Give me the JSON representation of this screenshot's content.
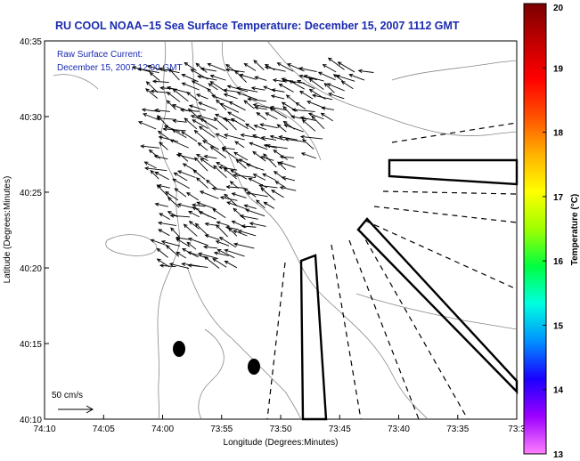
{
  "chart_data": {
    "type": "vector_field",
    "title": "RU COOL  NOAA−15  Sea Surface Temperature:  December 15, 2007 1112 GMT",
    "annotation_lines": [
      "Raw Surface Current:",
      "December 15, 2007 12:00 GMT"
    ],
    "xlabel": "Longitude (Degrees:Minutes)",
    "ylabel": "Latitude (Degrees:Minutes)",
    "x_ticks": [
      {
        "value": -74.1667,
        "label": "74:10"
      },
      {
        "value": -74.0833,
        "label": "74:05"
      },
      {
        "value": -74.0,
        "label": "74:00"
      },
      {
        "value": -73.9167,
        "label": "73:55"
      },
      {
        "value": -73.8333,
        "label": "73:50"
      },
      {
        "value": -73.75,
        "label": "73:45"
      },
      {
        "value": -73.6667,
        "label": "73:40"
      },
      {
        "value": -73.5833,
        "label": "73:35"
      },
      {
        "value": -73.5,
        "label": "73:3"
      }
    ],
    "y_ticks": [
      {
        "value": 40.1667,
        "label": "40:10"
      },
      {
        "value": 40.25,
        "label": "40:15"
      },
      {
        "value": 40.3333,
        "label": "40:20"
      },
      {
        "value": 40.4167,
        "label": "40:25"
      },
      {
        "value": 40.5,
        "label": "40:30"
      },
      {
        "value": 40.5833,
        "label": "40:35"
      }
    ],
    "xlim": [
      -74.1667,
      -73.5
    ],
    "ylim": [
      40.1667,
      40.5833
    ],
    "scale_label": "50 cm/s",
    "scale_speed": 50,
    "colorbar": {
      "label": "Temperature (°C)",
      "min": 13,
      "max": 20,
      "ticks": [
        13,
        14,
        15,
        16,
        17,
        18,
        19,
        20
      ],
      "colors": [
        "#ff80ff",
        "#9c00ff",
        "#1a00ff",
        "#0090ff",
        "#00ffe0",
        "#00ff40",
        "#a0ff00",
        "#ffff00",
        "#ffb000",
        "#ff5000",
        "#ff0000",
        "#c00000",
        "#7a0000"
      ]
    },
    "land_color": "#ffffff",
    "ocean_color": "#ffffff",
    "current_field": {
      "lon_range": [
        -74.02,
        -73.7
      ],
      "lat_range": [
        40.33,
        40.55
      ],
      "dominant_direction": "southwest",
      "typical_speed_cm_s": 25
    }
  }
}
